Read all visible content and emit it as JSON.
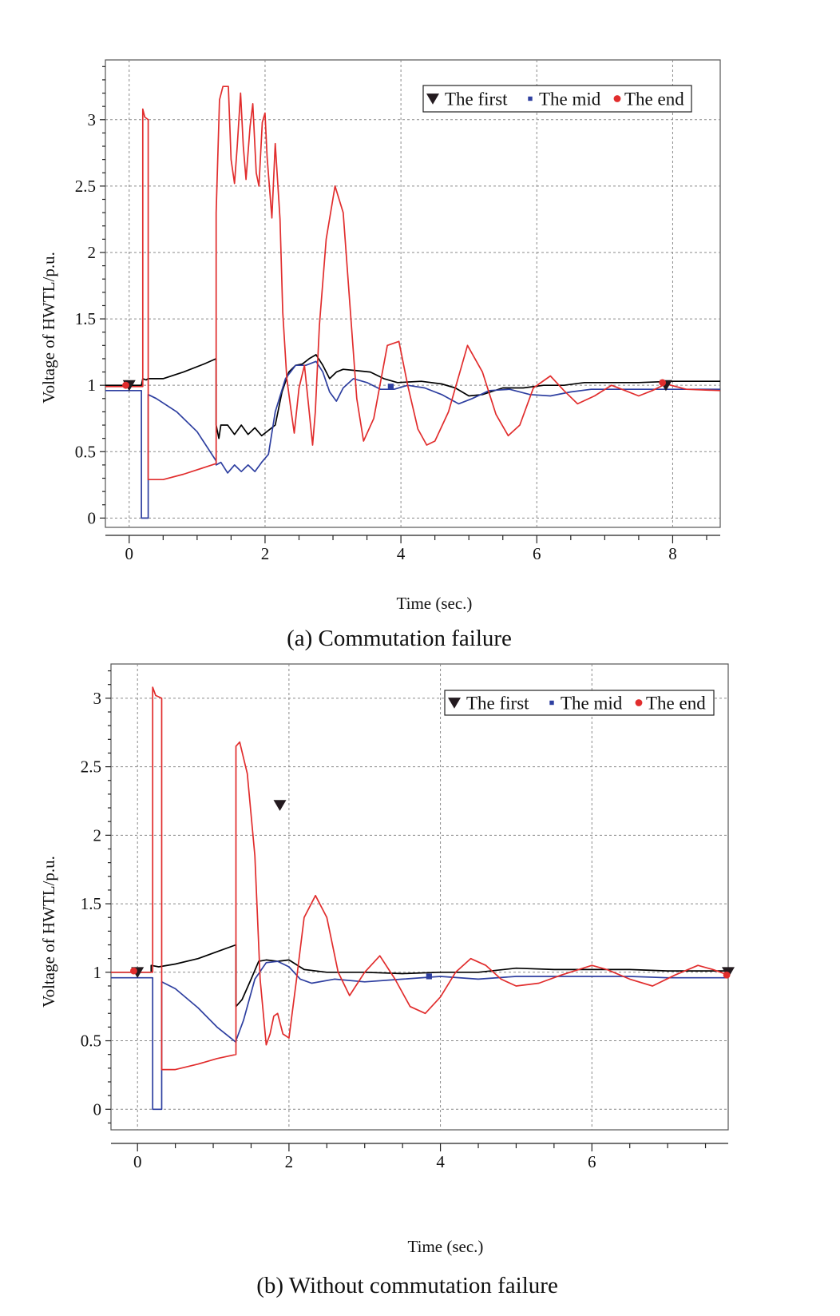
{
  "chart_data": [
    {
      "type": "line",
      "caption": "(a) Commutation failure",
      "xlabel": "Time (sec.)",
      "ylabel": "Voltage of HWTL/p.u.",
      "xlim": [
        -0.35,
        8.7
      ],
      "ylim": [
        -0.07,
        3.45
      ],
      "xticks": [
        0,
        2,
        4,
        6,
        8
      ],
      "yticks": [
        0,
        0.5,
        1,
        1.5,
        2,
        2.5,
        3
      ],
      "ytick_labels": [
        "0",
        "0.5",
        "1",
        "1.5",
        "2",
        "2.5",
        "3"
      ],
      "grid": true,
      "legend_position": "top-right",
      "series": [
        {
          "name": "The first",
          "color": "#000000",
          "marker": "triangle-down",
          "markers": [
            [
              0.0,
              1.0
            ],
            [
              7.9,
              1.0
            ]
          ],
          "x": [
            -0.35,
            0.0,
            0.18,
            0.2,
            0.25,
            0.28,
            0.5,
            0.8,
            1.1,
            1.28,
            1.28,
            1.32,
            1.35,
            1.45,
            1.55,
            1.65,
            1.75,
            1.85,
            1.95,
            2.05,
            2.15,
            2.25,
            2.35,
            2.45,
            2.55,
            2.65,
            2.75,
            2.85,
            2.95,
            3.05,
            3.15,
            3.35,
            3.55,
            3.75,
            3.95,
            4.3,
            4.6,
            4.8,
            5.0,
            5.2,
            5.5,
            5.8,
            6.1,
            6.4,
            6.7,
            7.0,
            7.5,
            8.0,
            8.7
          ],
          "y": [
            1.0,
            1.0,
            1.0,
            1.05,
            1.04,
            1.05,
            1.05,
            1.1,
            1.16,
            1.2,
            0.7,
            0.6,
            0.7,
            0.7,
            0.63,
            0.7,
            0.63,
            0.68,
            0.62,
            0.66,
            0.7,
            0.95,
            1.1,
            1.15,
            1.16,
            1.2,
            1.23,
            1.15,
            1.05,
            1.1,
            1.12,
            1.11,
            1.1,
            1.05,
            1.02,
            1.03,
            1.01,
            0.98,
            0.92,
            0.93,
            0.98,
            0.98,
            1.0,
            1.0,
            1.02,
            1.02,
            1.02,
            1.03,
            1.03
          ]
        },
        {
          "name": "The mid",
          "color": "#2e3fa0",
          "marker": "square",
          "markers": [
            [
              3.85,
              0.99
            ]
          ],
          "x": [
            -0.35,
            0.0,
            0.18,
            0.18,
            0.28,
            0.28,
            0.4,
            0.7,
            1.0,
            1.28,
            1.28,
            1.35,
            1.45,
            1.55,
            1.65,
            1.75,
            1.85,
            1.95,
            2.05,
            2.15,
            2.3,
            2.45,
            2.6,
            2.75,
            2.85,
            2.95,
            3.05,
            3.15,
            3.3,
            3.5,
            3.7,
            3.9,
            4.1,
            4.35,
            4.6,
            4.85,
            5.05,
            5.3,
            5.6,
            5.9,
            6.2,
            6.5,
            6.8,
            7.2,
            7.6,
            8.0,
            8.7
          ],
          "y": [
            0.96,
            0.96,
            0.96,
            0.0,
            0.0,
            0.93,
            0.9,
            0.8,
            0.65,
            0.43,
            0.4,
            0.42,
            0.34,
            0.4,
            0.35,
            0.4,
            0.35,
            0.42,
            0.48,
            0.8,
            1.05,
            1.15,
            1.15,
            1.18,
            1.1,
            0.95,
            0.88,
            0.98,
            1.05,
            1.02,
            0.97,
            0.97,
            1.0,
            0.98,
            0.93,
            0.86,
            0.9,
            0.96,
            0.97,
            0.93,
            0.92,
            0.95,
            0.97,
            0.97,
            0.97,
            0.97,
            0.97
          ]
        },
        {
          "name": "The end",
          "color": "#e12d2d",
          "marker": "circle",
          "markers": [
            [
              -0.05,
              1.0
            ],
            [
              7.85,
              1.02
            ]
          ],
          "x": [
            -0.35,
            0.0,
            0.1,
            0.2,
            0.2,
            0.23,
            0.28,
            0.28,
            0.5,
            0.8,
            1.1,
            1.28,
            1.28,
            1.33,
            1.38,
            1.46,
            1.5,
            1.55,
            1.59,
            1.64,
            1.68,
            1.72,
            1.78,
            1.82,
            1.87,
            1.91,
            1.96,
            2.0,
            2.03,
            2.1,
            2.15,
            2.22,
            2.26,
            2.32,
            2.38,
            2.43,
            2.5,
            2.58,
            2.64,
            2.7,
            2.74,
            2.8,
            2.9,
            3.03,
            3.15,
            3.25,
            3.35,
            3.45,
            3.6,
            3.8,
            3.97,
            4.1,
            4.25,
            4.38,
            4.5,
            4.7,
            4.98,
            5.2,
            5.4,
            5.58,
            5.75,
            5.95,
            6.2,
            6.4,
            6.6,
            6.85,
            7.1,
            7.3,
            7.5,
            7.7,
            7.9,
            8.2,
            8.7
          ],
          "y": [
            0.99,
            0.99,
            0.99,
            0.99,
            3.08,
            3.02,
            3.0,
            0.29,
            0.29,
            0.33,
            0.38,
            0.41,
            2.3,
            3.15,
            3.25,
            3.25,
            2.7,
            2.52,
            2.8,
            3.2,
            2.8,
            2.55,
            2.95,
            3.12,
            2.6,
            2.5,
            2.98,
            3.05,
            2.72,
            2.26,
            2.82,
            2.25,
            1.55,
            1.05,
            0.82,
            0.64,
            0.98,
            1.15,
            0.85,
            0.55,
            0.8,
            1.45,
            2.1,
            2.5,
            2.3,
            1.6,
            0.9,
            0.58,
            0.75,
            1.3,
            1.33,
            1.0,
            0.67,
            0.55,
            0.58,
            0.8,
            1.3,
            1.1,
            0.78,
            0.62,
            0.7,
            0.98,
            1.07,
            0.96,
            0.86,
            0.92,
            1.0,
            0.96,
            0.92,
            0.96,
            1.01,
            0.97,
            0.96
          ]
        }
      ]
    },
    {
      "type": "line",
      "caption": "(b) Without commutation failure",
      "xlabel": "Time (sec.)",
      "ylabel": "Voltage of HWTL/p.u.",
      "xlim": [
        -0.35,
        7.8
      ],
      "ylim": [
        -0.15,
        3.25
      ],
      "xticks": [
        0,
        2,
        4,
        6
      ],
      "yticks": [
        0,
        0.5,
        1,
        1.5,
        2,
        2.5,
        3
      ],
      "ytick_labels": [
        "0",
        "0.5",
        "1",
        "1.5",
        "2",
        "2.5",
        "3"
      ],
      "grid": true,
      "legend_position": "top-right",
      "series": [
        {
          "name": "The first",
          "color": "#000000",
          "marker": "triangle-down",
          "markers": [
            [
              0.0,
              1.0
            ],
            [
              1.88,
              2.22
            ],
            [
              7.8,
              1.0
            ]
          ],
          "x": [
            -0.35,
            0.0,
            0.18,
            0.18,
            0.28,
            0.5,
            0.8,
            1.05,
            1.3,
            1.3,
            1.38,
            1.5,
            1.6,
            1.7,
            1.85,
            2.0,
            2.2,
            2.5,
            3.0,
            3.5,
            4.0,
            4.5,
            5.0,
            5.5,
            6.0,
            6.5,
            7.0,
            7.5,
            7.8
          ],
          "y": [
            1.0,
            1.0,
            1.0,
            1.05,
            1.04,
            1.06,
            1.1,
            1.15,
            1.2,
            0.75,
            0.8,
            0.95,
            1.08,
            1.09,
            1.08,
            1.09,
            1.02,
            1.0,
            1.0,
            0.99,
            1.0,
            1.0,
            1.03,
            1.02,
            1.02,
            1.02,
            1.01,
            1.01,
            1.01
          ]
        },
        {
          "name": "The mid",
          "color": "#2e3fa0",
          "marker": "square",
          "markers": [
            [
              3.85,
              0.97
            ]
          ],
          "x": [
            -0.35,
            0.0,
            0.2,
            0.2,
            0.32,
            0.32,
            0.5,
            0.8,
            1.05,
            1.3,
            1.3,
            1.4,
            1.55,
            1.7,
            1.85,
            2.0,
            2.15,
            2.3,
            2.6,
            3.0,
            3.5,
            4.0,
            4.5,
            5.0,
            5.5,
            6.0,
            6.5,
            7.0,
            7.8
          ],
          "y": [
            0.96,
            0.96,
            0.96,
            0.0,
            0.0,
            0.93,
            0.88,
            0.74,
            0.6,
            0.49,
            0.5,
            0.65,
            0.95,
            1.07,
            1.08,
            1.04,
            0.95,
            0.92,
            0.95,
            0.93,
            0.95,
            0.97,
            0.95,
            0.97,
            0.97,
            0.97,
            0.97,
            0.96,
            0.96
          ]
        },
        {
          "name": "The end",
          "color": "#e12d2d",
          "marker": "circle",
          "markers": [
            [
              -0.05,
              1.01
            ],
            [
              7.78,
              0.98
            ]
          ],
          "x": [
            -0.35,
            0.0,
            0.1,
            0.2,
            0.2,
            0.24,
            0.32,
            0.32,
            0.5,
            0.8,
            1.05,
            1.3,
            1.3,
            1.35,
            1.45,
            1.55,
            1.62,
            1.7,
            1.75,
            1.8,
            1.85,
            1.92,
            2.0,
            2.1,
            2.2,
            2.35,
            2.5,
            2.65,
            2.8,
            3.0,
            3.2,
            3.4,
            3.6,
            3.8,
            4.0,
            4.2,
            4.4,
            4.6,
            4.8,
            5.0,
            5.3,
            5.6,
            6.0,
            6.2,
            6.5,
            6.8,
            7.1,
            7.4,
            7.6,
            7.8
          ],
          "y": [
            1.0,
            1.0,
            1.0,
            1.0,
            3.08,
            3.02,
            3.0,
            0.29,
            0.29,
            0.33,
            0.37,
            0.4,
            2.65,
            2.68,
            2.45,
            1.85,
            0.95,
            0.47,
            0.55,
            0.68,
            0.7,
            0.55,
            0.52,
            0.95,
            1.4,
            1.56,
            1.4,
            1.0,
            0.83,
            1.0,
            1.12,
            0.95,
            0.75,
            0.7,
            0.82,
            1.0,
            1.1,
            1.05,
            0.95,
            0.9,
            0.92,
            0.98,
            1.05,
            1.02,
            0.95,
            0.9,
            0.98,
            1.05,
            1.02,
            0.98
          ]
        }
      ]
    }
  ]
}
